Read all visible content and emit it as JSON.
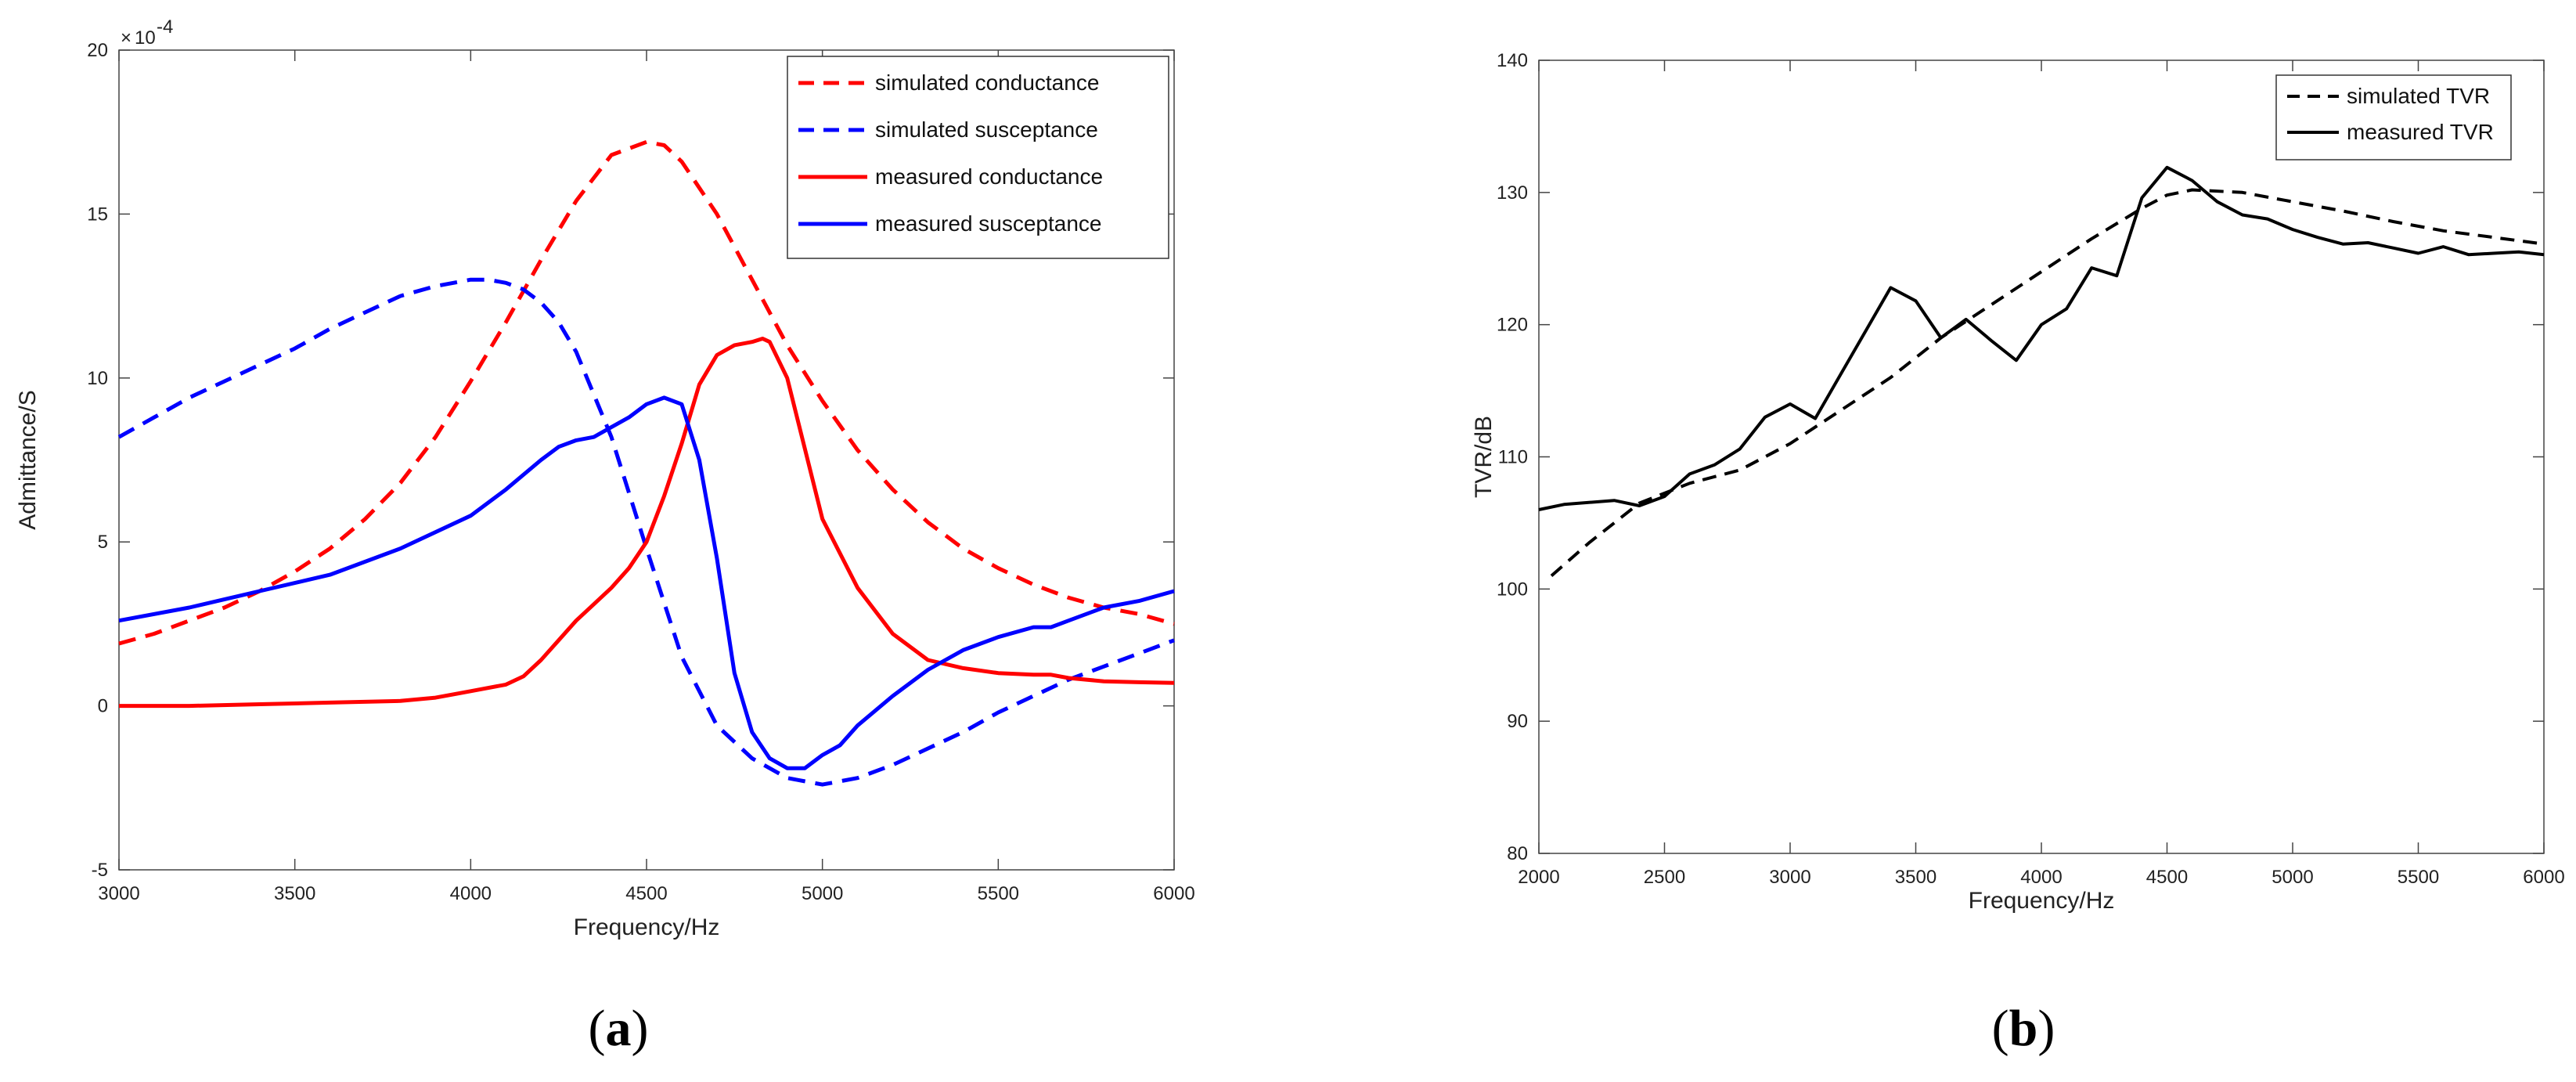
{
  "chart_data": [
    {
      "type": "line",
      "panel": "a",
      "caption_label": "a",
      "xlabel": "Frequency/Hz",
      "ylabel": "Admittance/S",
      "xlim": [
        3000,
        6000
      ],
      "ylim": [
        -5,
        20
      ],
      "exponent": "10",
      "exponent_power": "-4",
      "times_symbol": "×",
      "xticks": [
        3000,
        3500,
        4000,
        4500,
        5000,
        5500,
        6000
      ],
      "yticks": [
        -5,
        0,
        5,
        10,
        15,
        20
      ],
      "legend_position": "top-right",
      "grid": false,
      "series": [
        {
          "name": "simulated conductance",
          "color": "#ff0000",
          "dash": "dashed",
          "x": [
            3000,
            3100,
            3200,
            3300,
            3400,
            3500,
            3600,
            3700,
            3800,
            3900,
            4000,
            4100,
            4200,
            4300,
            4400,
            4500,
            4550,
            4600,
            4700,
            4800,
            4900,
            5000,
            5100,
            5200,
            5300,
            5400,
            5500,
            5600,
            5700,
            5800,
            5900,
            6000
          ],
          "y": [
            1.9,
            2.2,
            2.6,
            3.0,
            3.5,
            4.1,
            4.8,
            5.7,
            6.8,
            8.2,
            9.9,
            11.7,
            13.6,
            15.4,
            16.8,
            17.2,
            17.1,
            16.6,
            15.0,
            13.0,
            11.0,
            9.3,
            7.8,
            6.6,
            5.6,
            4.8,
            4.2,
            3.7,
            3.3,
            3.0,
            2.8,
            2.5
          ]
        },
        {
          "name": "simulated susceptance",
          "color": "#0000ff",
          "dash": "dashed",
          "x": [
            3000,
            3100,
            3200,
            3300,
            3400,
            3500,
            3600,
            3700,
            3800,
            3900,
            4000,
            4050,
            4100,
            4150,
            4200,
            4250,
            4300,
            4400,
            4500,
            4600,
            4700,
            4800,
            4900,
            5000,
            5100,
            5200,
            5300,
            5400,
            5500,
            5600,
            5700,
            5800,
            5900,
            6000
          ],
          "y": [
            8.2,
            8.8,
            9.4,
            9.9,
            10.4,
            10.9,
            11.5,
            12.0,
            12.5,
            12.8,
            13.0,
            13.0,
            12.9,
            12.7,
            12.3,
            11.7,
            10.8,
            8.2,
            4.8,
            1.5,
            -0.6,
            -1.6,
            -2.2,
            -2.4,
            -2.2,
            -1.8,
            -1.3,
            -0.8,
            -0.2,
            0.3,
            0.8,
            1.2,
            1.6,
            2.0
          ]
        },
        {
          "name": "measured conductance",
          "color": "#ff0000",
          "dash": "solid",
          "x": [
            3000,
            3200,
            3400,
            3600,
            3800,
            3900,
            4000,
            4100,
            4150,
            4200,
            4250,
            4300,
            4350,
            4400,
            4450,
            4500,
            4550,
            4600,
            4650,
            4700,
            4750,
            4800,
            4830,
            4850,
            4900,
            5000,
            5100,
            5200,
            5300,
            5400,
            5500,
            5600,
            5650,
            5700,
            5800,
            5900,
            6000
          ],
          "y": [
            0,
            0,
            0.05,
            0.1,
            0.15,
            0.25,
            0.45,
            0.65,
            0.9,
            1.4,
            2.0,
            2.6,
            3.1,
            3.6,
            4.2,
            5.0,
            6.4,
            8.0,
            9.8,
            10.7,
            11.0,
            11.1,
            11.2,
            11.1,
            10.0,
            5.7,
            3.6,
            2.2,
            1.4,
            1.15,
            1.0,
            0.95,
            0.95,
            0.85,
            0.75,
            0.72,
            0.7
          ]
        },
        {
          "name": "measured susceptance",
          "color": "#0000ff",
          "dash": "solid",
          "x": [
            3000,
            3200,
            3400,
            3600,
            3800,
            4000,
            4100,
            4200,
            4250,
            4300,
            4350,
            4400,
            4450,
            4500,
            4550,
            4600,
            4650,
            4700,
            4750,
            4800,
            4850,
            4900,
            4950,
            5000,
            5050,
            5100,
            5200,
            5300,
            5400,
            5500,
            5600,
            5650,
            5700,
            5800,
            5900,
            6000
          ],
          "y": [
            2.6,
            3.0,
            3.5,
            4.0,
            4.8,
            5.8,
            6.6,
            7.5,
            7.9,
            8.1,
            8.2,
            8.5,
            8.8,
            9.2,
            9.4,
            9.2,
            7.5,
            4.5,
            1.0,
            -0.8,
            -1.6,
            -1.9,
            -1.9,
            -1.5,
            -1.2,
            -0.6,
            0.3,
            1.1,
            1.7,
            2.1,
            2.4,
            2.4,
            2.6,
            3.0,
            3.2,
            3.5
          ]
        }
      ]
    },
    {
      "type": "line",
      "panel": "b",
      "caption_label": "b",
      "xlabel": "Frequency/Hz",
      "ylabel": "TVR/dB",
      "xlim": [
        2000,
        6000
      ],
      "ylim": [
        80,
        140
      ],
      "xticks": [
        2000,
        2500,
        3000,
        3500,
        4000,
        4500,
        5000,
        5500,
        6000
      ],
      "yticks": [
        80,
        90,
        100,
        110,
        120,
        130,
        140
      ],
      "legend_position": "top-right",
      "grid": false,
      "series": [
        {
          "name": "simulated TVR",
          "color": "#000000",
          "dash": "dashed",
          "x": [
            2050,
            2200,
            2400,
            2600,
            2800,
            3000,
            3200,
            3400,
            3600,
            3800,
            4000,
            4200,
            4400,
            4500,
            4600,
            4800,
            5000,
            5200,
            5400,
            5600,
            5800,
            6000
          ],
          "y": [
            101,
            103.5,
            106.5,
            108,
            109,
            111,
            113.5,
            116,
            119,
            121.5,
            124,
            126.5,
            128.8,
            129.8,
            130.2,
            130,
            129.3,
            128.6,
            127.8,
            127.1,
            126.6,
            126.1
          ]
        },
        {
          "name": "measured TVR",
          "color": "#000000",
          "dash": "solid",
          "x": [
            2000,
            2100,
            2300,
            2400,
            2500,
            2600,
            2700,
            2800,
            2900,
            3000,
            3100,
            3200,
            3300,
            3400,
            3500,
            3600,
            3700,
            3800,
            3900,
            4000,
            4100,
            4200,
            4300,
            4400,
            4500,
            4600,
            4700,
            4800,
            4900,
            5000,
            5100,
            5200,
            5300,
            5400,
            5500,
            5600,
            5700,
            5800,
            5900,
            6000
          ],
          "y": [
            106,
            106.4,
            106.7,
            106.3,
            107,
            108.7,
            109.4,
            110.6,
            113,
            114,
            112.9,
            116.2,
            119.5,
            122.8,
            121.8,
            119,
            120.4,
            118.8,
            117.3,
            120,
            121.2,
            124.3,
            123.7,
            129.6,
            131.9,
            130.9,
            129.3,
            128.3,
            128,
            127.2,
            126.6,
            126.1,
            126.2,
            125.8,
            125.4,
            125.9,
            125.3,
            125.4,
            125.5,
            125.3
          ]
        }
      ]
    }
  ]
}
